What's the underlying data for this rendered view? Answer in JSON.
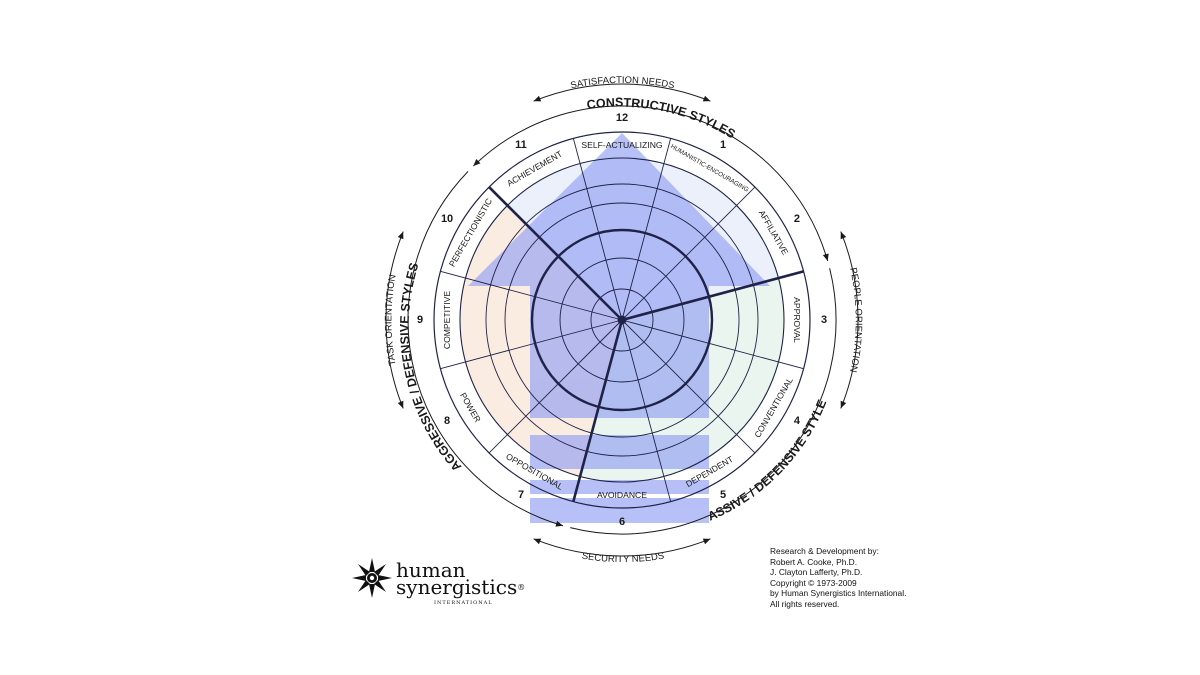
{
  "circumplex": {
    "top_label": "SATISFACTION NEEDS",
    "bottom_label": "SECURITY NEEDS",
    "left_label": "TASK ORIENTATION",
    "right_label": "PEOPLE ORIENTATION",
    "cluster_constructive": "CONSTRUCTIVE STYLES",
    "cluster_aggressive": "AGGRESSIVE / DEFENSIVE STYLES",
    "cluster_passive": "PASSIVE / DEFENSIVE STYLES",
    "styles": [
      {
        "number": "1",
        "name": "HUMANISTIC-ENCOURAGING"
      },
      {
        "number": "2",
        "name": "AFFILIATIVE"
      },
      {
        "number": "3",
        "name": "APPROVAL"
      },
      {
        "number": "4",
        "name": "CONVENTIONAL"
      },
      {
        "number": "5",
        "name": "DEPENDENT"
      },
      {
        "number": "6",
        "name": "AVOIDANCE"
      },
      {
        "number": "7",
        "name": "OPPOSITIONAL"
      },
      {
        "number": "8",
        "name": "POWER"
      },
      {
        "number": "9",
        "name": "COMPETITIVE"
      },
      {
        "number": "10",
        "name": "PERFECTIONISTIC"
      },
      {
        "number": "11",
        "name": "ACHIEVEMENT"
      },
      {
        "number": "12",
        "name": "SELF-ACTUALIZING"
      }
    ],
    "colors": {
      "arrow_fill": "#8c9bf2",
      "ink": "#1f2348",
      "constructive_tint": "#dde3f7",
      "aggressive_tint": "#f7dccb",
      "passive_tint": "#d8ece2"
    }
  },
  "logo": {
    "line1": "human",
    "line2": "synergistics",
    "registered": "®",
    "subtitle": "INTERNATIONAL",
    "icon": "snowflake-star-icon"
  },
  "credits": [
    "Research & Development by:",
    "Robert A. Cooke, Ph.D.",
    "J. Clayton Lafferty, Ph.D.",
    "Copyright © 1973-2009",
    "by Human Synergistics International.",
    "All rights reserved."
  ]
}
